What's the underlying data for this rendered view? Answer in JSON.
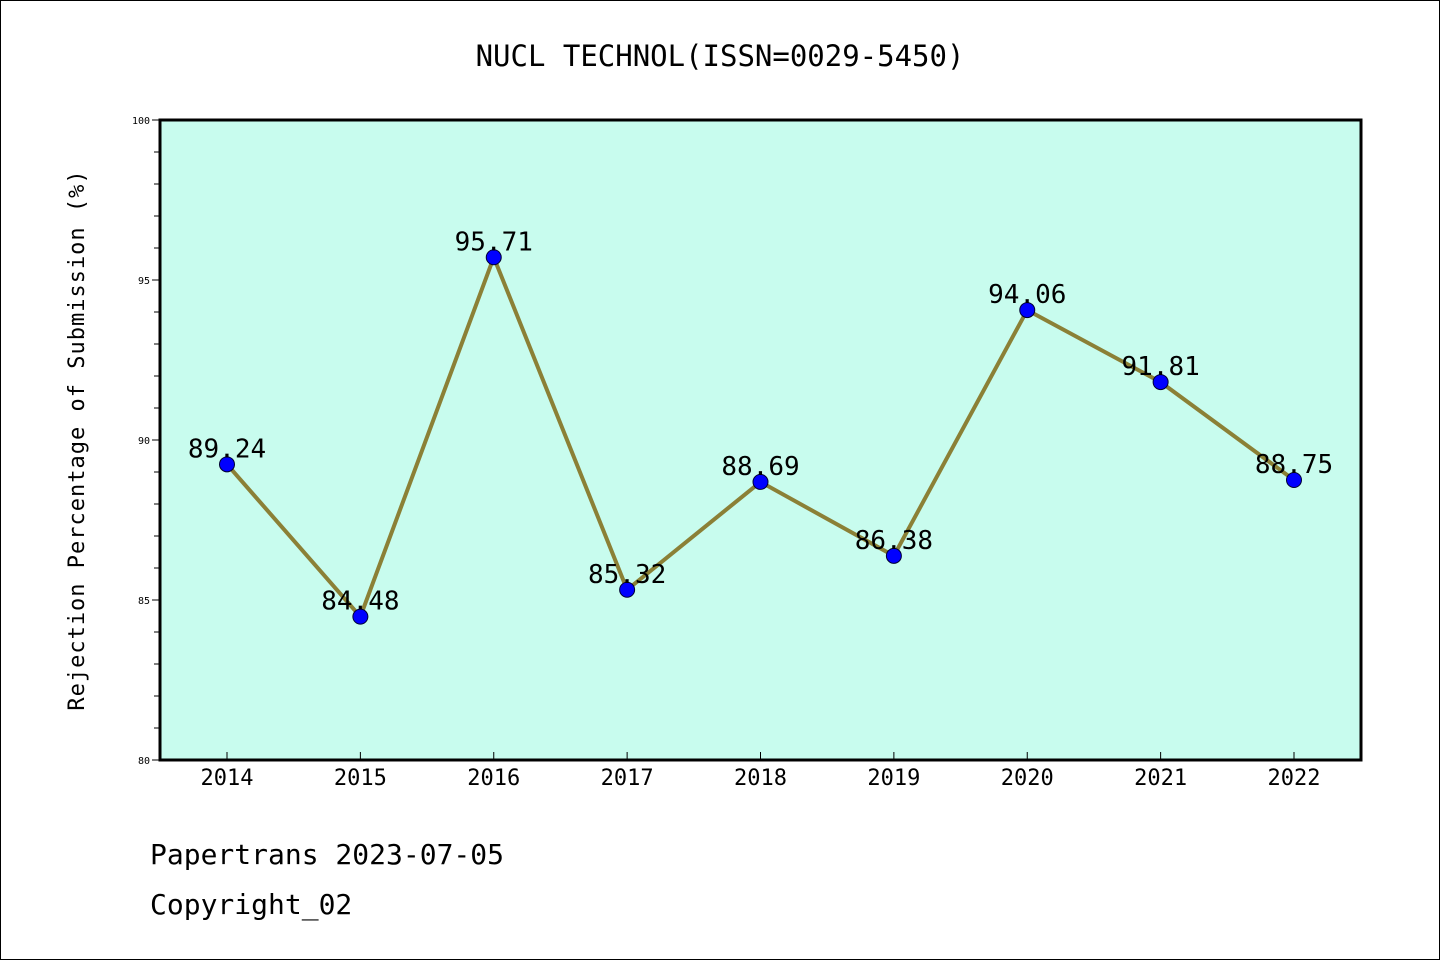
{
  "chart_data": {
    "type": "line",
    "title": "NUCL TECHNOL(ISSN=0029-5450)",
    "ylabel": "Rejection Percentage of Submission (%)",
    "xlabel": "",
    "categories": [
      "2014",
      "2015",
      "2016",
      "2017",
      "2018",
      "2019",
      "2020",
      "2021",
      "2022"
    ],
    "values": [
      89.24,
      84.48,
      95.71,
      85.32,
      88.69,
      86.38,
      94.06,
      91.81,
      88.75
    ],
    "data_labels": [
      "89.24",
      "84.48",
      "95.71",
      "85.32",
      "88.69",
      "86.38",
      "94.06",
      "91.81",
      "88.75"
    ],
    "ylim": [
      80,
      100
    ],
    "yticks": [
      80,
      85,
      90,
      95,
      100
    ],
    "grid": false,
    "legend": "none",
    "colors": {
      "plot_background": "#c8fcee",
      "line": "#8b8036",
      "marker": "#0000ff"
    }
  },
  "footer": {
    "source": "Papertrans 2023-07-05",
    "copyright": "Copyright_02"
  }
}
